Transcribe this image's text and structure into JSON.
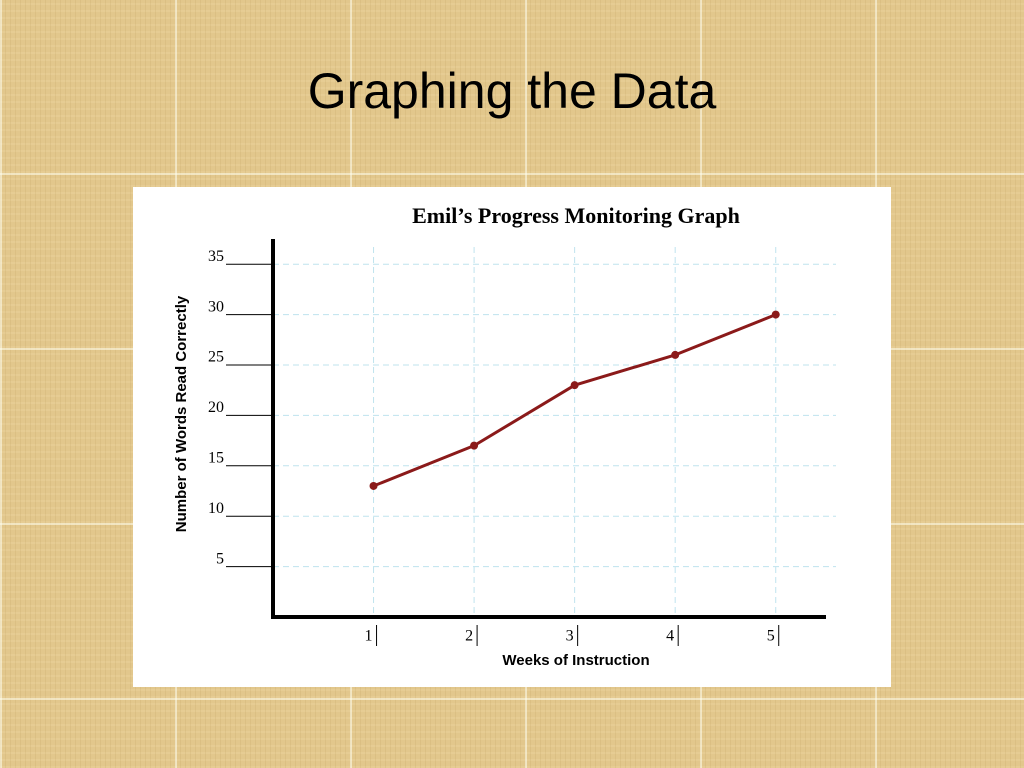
{
  "title": "Graphing the Data",
  "chart_data": {
    "type": "line",
    "title": "Emil’s Progress Monitoring Graph",
    "x_label": "Weeks of Instruction",
    "y_label": "Number of Words Read Correctly",
    "x": [
      1,
      2,
      3,
      4,
      5
    ],
    "values": [
      13,
      17,
      23,
      26,
      30
    ],
    "color": "#8b1a1a",
    "xlim": [
      0,
      5.5
    ],
    "ylim": [
      0,
      37.5
    ],
    "xticks": [
      1,
      2,
      3,
      4,
      5
    ],
    "yticks": [
      5,
      10,
      15,
      20,
      25,
      30,
      35
    ],
    "grid": true
  }
}
